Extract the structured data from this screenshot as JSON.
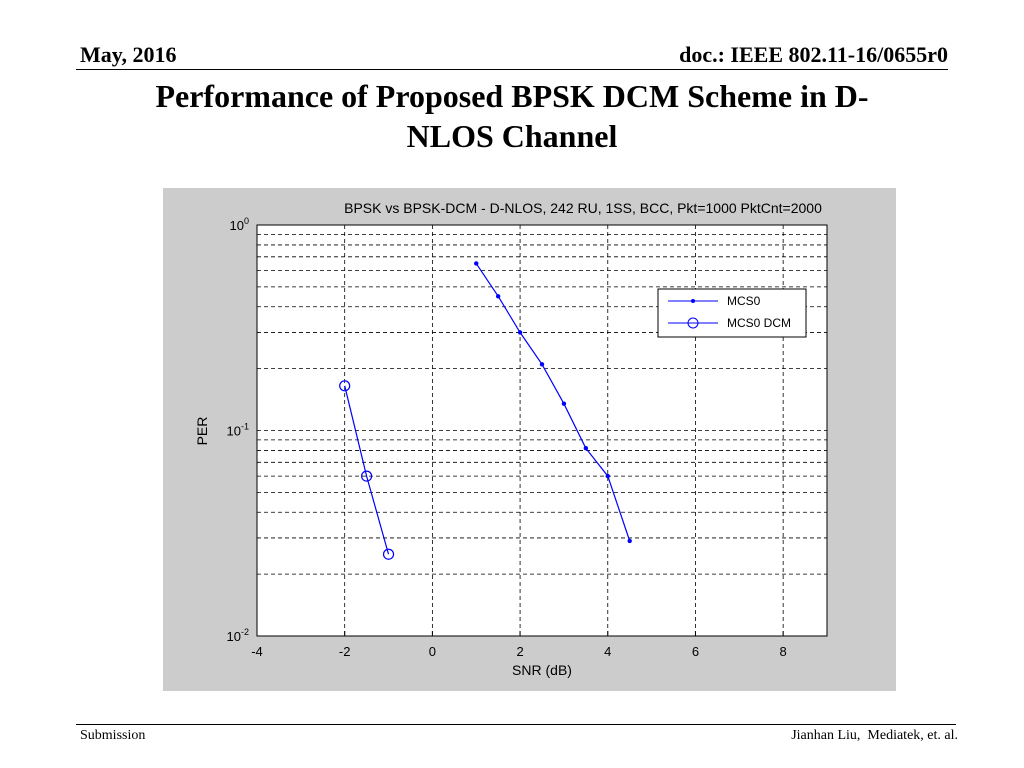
{
  "header": {
    "date": "May, 2016",
    "doc_id": "doc.: IEEE 802.11-16/0655r0"
  },
  "slide": {
    "title_line1": "Performance of Proposed BPSK DCM Scheme in D-",
    "title_line2": "NLOS Channel"
  },
  "footer": {
    "left": "Submission",
    "right": "Jianhan Liu,  Mediatek, et. al."
  },
  "chart_data": {
    "type": "line",
    "title": "BPSK vs BPSK-DCM - D-NLOS, 242 RU, 1SS, BCC, Pkt=1000 PktCnt=2000",
    "xlabel": "SNR (dB)",
    "ylabel": "PER",
    "xlim": [
      -4,
      9
    ],
    "ylim": [
      0.01,
      1
    ],
    "yscale": "log",
    "grid": true,
    "legend_position": "top-right",
    "x_ticks": [
      -4,
      -2,
      0,
      2,
      4,
      6,
      8
    ],
    "y_ticks": [
      {
        "value": 1,
        "base": "10",
        "exp": "0"
      },
      {
        "value": 0.1,
        "base": "10",
        "exp": "-1"
      },
      {
        "value": 0.01,
        "base": "10",
        "exp": "-2"
      }
    ],
    "series": [
      {
        "name": "MCS0",
        "marker": "dot",
        "color": "#0000ff",
        "x": [
          1,
          1.5,
          2,
          2.5,
          3,
          3.5,
          4,
          4.5
        ],
        "y": [
          0.65,
          0.45,
          0.3,
          0.21,
          0.135,
          0.082,
          0.06,
          0.029
        ]
      },
      {
        "name": "MCS0 DCM",
        "marker": "circle",
        "color": "#0000ff",
        "x": [
          -2,
          -1.5,
          -1
        ],
        "y": [
          0.165,
          0.06,
          0.025
        ]
      }
    ]
  }
}
